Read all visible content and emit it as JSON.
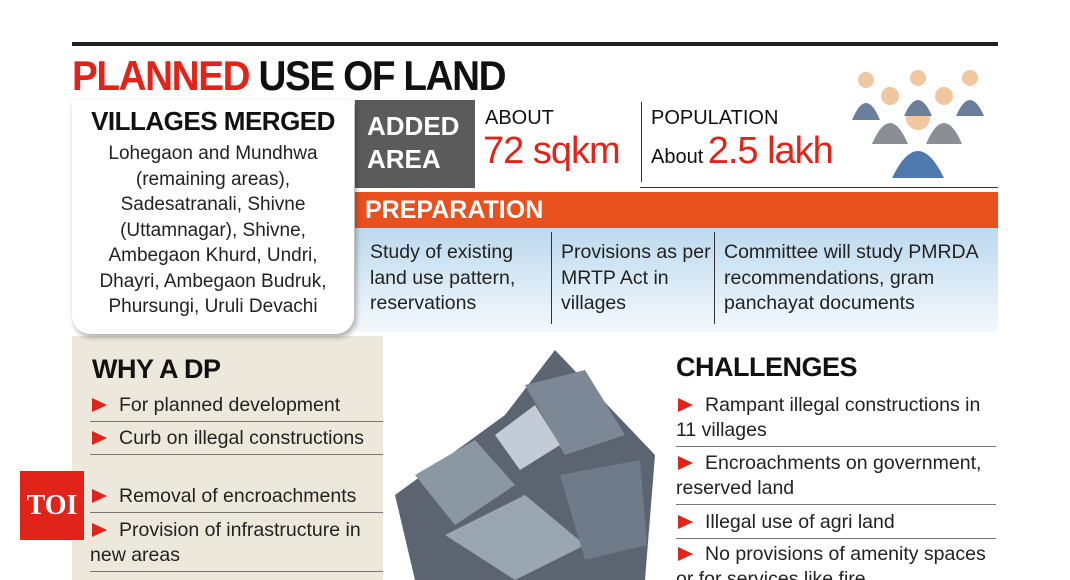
{
  "header": {
    "title_red": "PLANNED",
    "title_black": "USE OF LAND"
  },
  "villages": {
    "title": "VILLAGES MERGED",
    "lines": [
      "Lohegaon  and Mundhwa",
      "(remaining areas),",
      "Sadesatranali, Shivne",
      "(Uttamnagar), Shivne,",
      "Ambegaon Khurd, Undri,",
      "Dhayri, Ambegaon Budruk,",
      "Phursungi, Uruli Devachi"
    ]
  },
  "added_area": {
    "label": "ADDED AREA",
    "about": "ABOUT",
    "value": "72 sqkm"
  },
  "population": {
    "label": "POPULATION",
    "about": "About",
    "value": "2.5 lakh"
  },
  "preparation": {
    "title": "PREPARATION",
    "columns": [
      "Study of existing land use pattern, reservations",
      "Provisions as per MRTP Act in villages",
      "Committee will study PMRDA recommendations, gram panchayat documents"
    ]
  },
  "why_a_dp": {
    "title": "WHY A DP",
    "items": [
      "For planned development",
      "Curb on illegal constructions",
      "Removal of encroachments",
      "Provision of infrastructure in new areas"
    ]
  },
  "challenges": {
    "title": "CHALLENGES",
    "items": [
      "Rampant illegal constructions in 11 villages",
      "Encroachments on government, reserved land",
      "Illegal use of agri land",
      "No provisions of amenity spaces or for services like fire"
    ]
  },
  "logo": "TOI"
}
